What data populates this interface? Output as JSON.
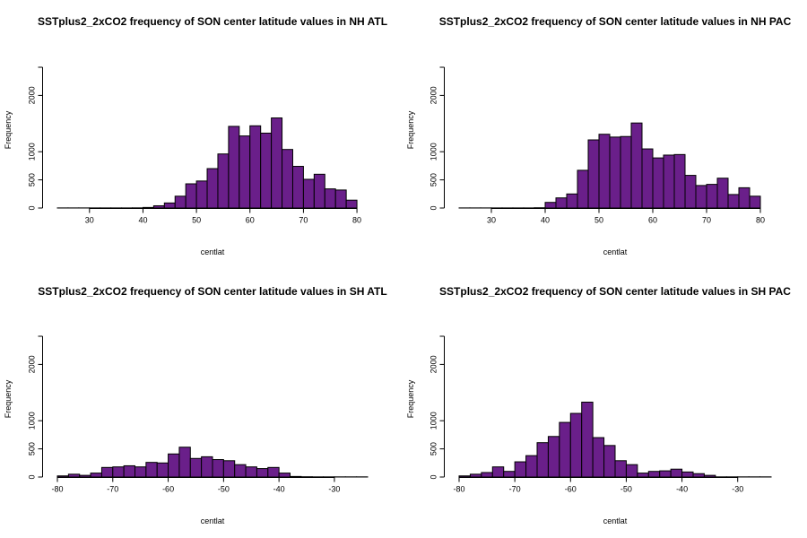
{
  "colors": {
    "bar_fill": "#6a1f8a",
    "bar_stroke": "#000000",
    "background": "#ffffff"
  },
  "chart_data": [
    {
      "type": "bar",
      "title": "SSTplus2_2xCO2 frequency of SON center latitude values in NH ATL",
      "xlabel": "centlat",
      "ylabel": "Frequency",
      "xlim": [
        24,
        82
      ],
      "ylim": [
        0,
        2500
      ],
      "xticks": [
        30,
        40,
        50,
        60,
        70,
        80
      ],
      "xtick_labels": [
        "30",
        "40",
        "50",
        "60",
        "70",
        "80"
      ],
      "yticks": [
        0,
        500,
        1000,
        2000
      ],
      "ytick_labels": [
        "0",
        "500",
        "1000",
        "2000"
      ],
      "bin_width": 2,
      "bin_starts": [
        24,
        26,
        28,
        30,
        32,
        34,
        36,
        38,
        40,
        42,
        44,
        46,
        48,
        50,
        52,
        54,
        56,
        58,
        60,
        62,
        64,
        66,
        68,
        70,
        72,
        74,
        76,
        78
      ],
      "values": [
        2,
        2,
        2,
        2,
        2,
        2,
        2,
        3,
        10,
        40,
        90,
        210,
        430,
        480,
        700,
        960,
        1450,
        1280,
        1460,
        1330,
        1600,
        1040,
        740,
        510,
        600,
        340,
        320,
        140
      ]
    },
    {
      "type": "bar",
      "title": "SSTplus2_2xCO2 frequency of SON center latitude values in NH PAC",
      "xlabel": "centlat",
      "ylabel": "Frequency",
      "xlim": [
        24,
        82
      ],
      "ylim": [
        0,
        2500
      ],
      "xticks": [
        30,
        40,
        50,
        60,
        70,
        80
      ],
      "xtick_labels": [
        "30",
        "40",
        "50",
        "60",
        "70",
        "80"
      ],
      "yticks": [
        0,
        500,
        1000,
        2000
      ],
      "ytick_labels": [
        "0",
        "500",
        "1000",
        "2000"
      ],
      "bin_width": 2,
      "bin_starts": [
        24,
        26,
        28,
        30,
        32,
        34,
        36,
        38,
        40,
        42,
        44,
        46,
        48,
        50,
        52,
        54,
        56,
        58,
        60,
        62,
        64,
        66,
        68,
        70,
        72,
        74,
        76,
        78
      ],
      "values": [
        2,
        2,
        2,
        2,
        2,
        2,
        2,
        5,
        100,
        180,
        250,
        670,
        1210,
        1310,
        1260,
        1270,
        1510,
        1050,
        890,
        940,
        950,
        580,
        400,
        420,
        530,
        240,
        360,
        210
      ]
    },
    {
      "type": "bar",
      "title": "SSTplus2_2xCO2 frequency of SON center latitude values in SH ATL",
      "xlabel": "centlat",
      "ylabel": "Frequency",
      "xlim": [
        -80,
        -24
      ],
      "ylim": [
        0,
        2500
      ],
      "xticks": [
        -80,
        -70,
        -60,
        -50,
        -40,
        -30
      ],
      "xtick_labels": [
        "-80",
        "-70",
        "-60",
        "-50",
        "-40",
        "-30"
      ],
      "yticks": [
        0,
        500,
        1000,
        2000
      ],
      "ytick_labels": [
        "0",
        "500",
        "1000",
        "2000"
      ],
      "bin_width": 2,
      "bin_starts": [
        -80,
        -78,
        -76,
        -74,
        -72,
        -70,
        -68,
        -66,
        -64,
        -62,
        -60,
        -58,
        -56,
        -54,
        -52,
        -50,
        -48,
        -46,
        -44,
        -42,
        -40,
        -38,
        -36,
        -34,
        -32,
        -30,
        -28,
        -26
      ],
      "values": [
        20,
        50,
        30,
        70,
        170,
        180,
        200,
        180,
        260,
        250,
        410,
        530,
        330,
        360,
        310,
        290,
        220,
        180,
        150,
        170,
        70,
        10,
        5,
        3,
        3,
        3,
        3,
        3
      ]
    },
    {
      "type": "bar",
      "title": "SSTplus2_2xCO2 frequency of SON center latitude values in SH PAC",
      "xlabel": "centlat",
      "ylabel": "Frequency",
      "xlim": [
        -80,
        -24
      ],
      "ylim": [
        0,
        2500
      ],
      "xticks": [
        -80,
        -70,
        -60,
        -50,
        -40,
        -30
      ],
      "xtick_labels": [
        "-80",
        "-70",
        "-60",
        "-50",
        "-40",
        "-30"
      ],
      "yticks": [
        0,
        500,
        1000,
        2000
      ],
      "ytick_labels": [
        "0",
        "500",
        "1000",
        "2000"
      ],
      "bin_width": 2,
      "bin_starts": [
        -80,
        -78,
        -76,
        -74,
        -72,
        -70,
        -68,
        -66,
        -64,
        -62,
        -60,
        -58,
        -56,
        -54,
        -52,
        -50,
        -48,
        -46,
        -44,
        -42,
        -40,
        -38,
        -36,
        -34,
        -32,
        -30,
        -28,
        -26
      ],
      "values": [
        20,
        50,
        80,
        180,
        100,
        270,
        380,
        610,
        720,
        970,
        1130,
        1330,
        700,
        560,
        290,
        220,
        70,
        100,
        110,
        140,
        90,
        60,
        30,
        3,
        3,
        3,
        3,
        3
      ]
    }
  ]
}
